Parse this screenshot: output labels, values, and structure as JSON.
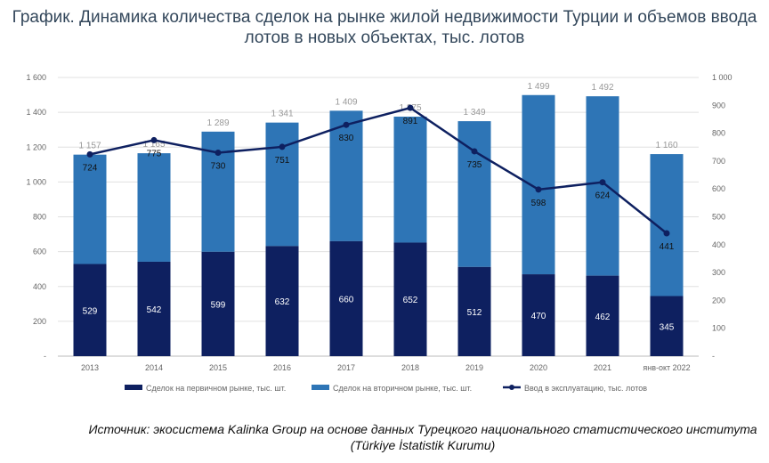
{
  "chart_data": {
    "type": "bar+line",
    "title": "График. Динамика количества сделок на рынке жилой недвижимости Турции и объемов ввода лотов в новых объектах, тыс. лотов",
    "categories": [
      "2013",
      "2014",
      "2015",
      "2016",
      "2017",
      "2018",
      "2019",
      "2020",
      "2021",
      "янв-окт 2022"
    ],
    "series": [
      {
        "name": "Сделок на первичном рынке, тыс. шт.",
        "type": "bar",
        "stacked": true,
        "axis": "left",
        "color": "#0e2060",
        "values": [
          529,
          542,
          599,
          632,
          660,
          652,
          512,
          470,
          462,
          345
        ]
      },
      {
        "name": "Сделок на вторичном рынке, тыс. шт.",
        "type": "bar",
        "stacked": true,
        "axis": "left",
        "color": "#2e75b6",
        "values": [
          628,
          623,
          690,
          709,
          749,
          723,
          837,
          1029,
          1030,
          815
        ]
      },
      {
        "name": "Ввод в эксплуатацию, тыс. лотов",
        "type": "line",
        "axis": "right",
        "color": "#0e2060",
        "values": [
          724,
          775,
          730,
          751,
          830,
          891,
          735,
          598,
          624,
          441
        ]
      }
    ],
    "totals": [
      "1 157",
      "1 165",
      "1 289",
      "1 341",
      "1 409",
      "1 375",
      "1 349",
      "1 499",
      "1 492",
      "1 160"
    ],
    "total_values": [
      1157,
      1165,
      1289,
      1341,
      1409,
      1375,
      1349,
      1499,
      1492,
      1160
    ],
    "primary_labels": [
      "529",
      "542",
      "599",
      "632",
      "660",
      "652",
      "512",
      "470",
      "462",
      "345"
    ],
    "line_labels": [
      "724",
      "775",
      "730",
      "751",
      "830",
      "891",
      "735",
      "598",
      "624",
      "441"
    ],
    "ylim": [
      0,
      1600
    ],
    "yticks": [
      "-",
      "200",
      "400",
      "600",
      "800",
      "1 000",
      "1 200",
      "1 400",
      "1 600"
    ],
    "y2lim": [
      0,
      1000
    ],
    "y2ticks": [
      "-",
      "100",
      "200",
      "300",
      "400",
      "500",
      "600",
      "700",
      "800",
      "900",
      "1 000"
    ],
    "grid": true,
    "legend_position": "bottom"
  },
  "source": "Источник: экосистема Kalinka Group на основе данных Турецкого национального статистического института (Türkiye İstatistik Kurumu)"
}
